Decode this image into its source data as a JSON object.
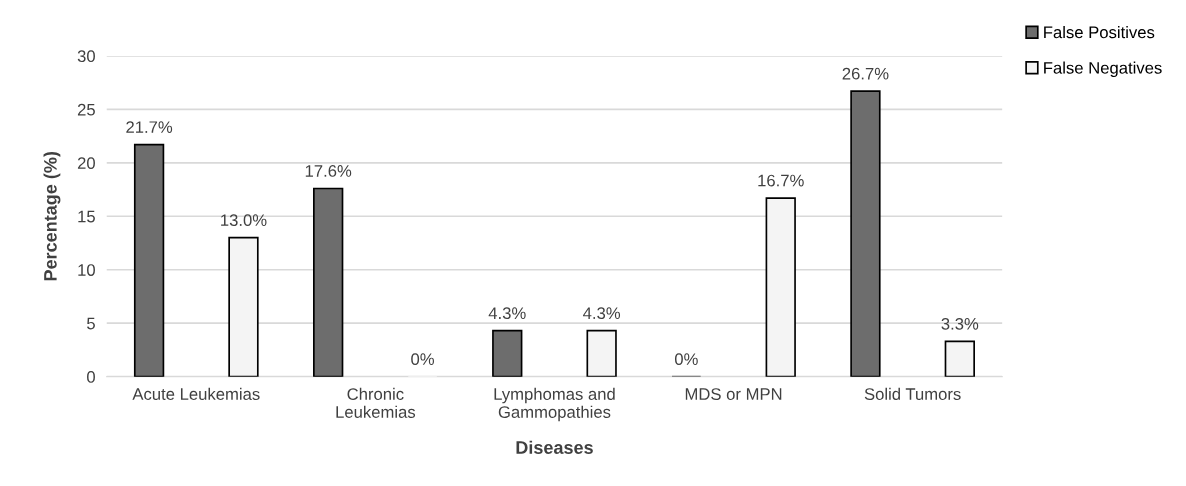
{
  "chart_data": {
    "type": "bar",
    "xlabel": "Diseases",
    "ylabel": "Percentage (%)",
    "categories": [
      "Acute Leukemias",
      "Chronic\nLeukemias",
      "Lymphomas and\nGammopathies",
      "MDS or MPN",
      "Solid Tumors"
    ],
    "series": [
      {
        "name": "False Positives",
        "color": "#6d6d6d",
        "values": [
          21.7,
          17.6,
          4.3,
          0,
          26.7
        ],
        "value_labels": [
          "21.7%",
          "17.6%",
          "4.3%",
          "0%",
          "26.7%"
        ]
      },
      {
        "name": "False Negatives",
        "color": "#f4f4f4",
        "values": [
          13.0,
          0,
          4.3,
          16.7,
          3.3
        ],
        "value_labels": [
          "13.0%",
          "0%",
          "4.3%",
          "16.7%",
          "3.3%"
        ]
      }
    ],
    "ylim": [
      0,
      30
    ],
    "yticks": [
      0,
      5,
      10,
      15,
      20,
      25,
      30
    ],
    "grid": "y",
    "legend": "top right"
  }
}
